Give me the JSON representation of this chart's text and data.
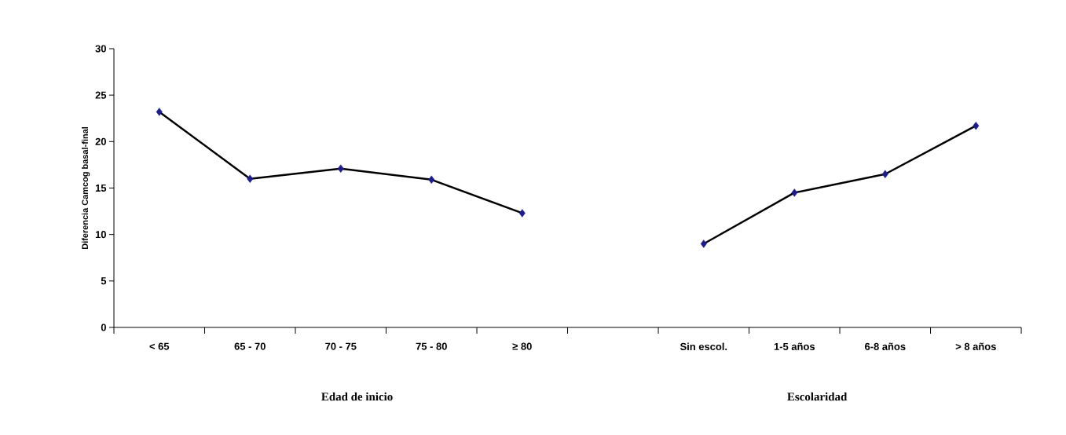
{
  "chart_data": {
    "type": "line",
    "ylabel": "Diferencia Camcog basal-final",
    "categories": [
      "< 65",
      "65 - 70",
      "70 - 75",
      "75 - 80",
      "≥ 80",
      null,
      "Sin escol.",
      "1-5 años",
      "6-8 años",
      "> 8 años"
    ],
    "series": [
      {
        "color": "#000000",
        "colors": [
          "#1c1c8c",
          "#1c1c8c",
          "#1c1c8c",
          "#1c1c8c",
          "#1c1c8c",
          "#1c1c8c",
          "#1c1c8c",
          "#1c1c8c",
          "#1c1c8c",
          "#1c1c8c"
        ],
        "values": [
          23.2,
          16.0,
          17.1,
          15.9,
          12.3,
          null,
          9.0,
          14.5,
          16.5,
          21.7
        ]
      }
    ],
    "annotations": [
      "Edad  de inicio",
      "Escolaridad"
    ],
    "ylim": [
      0,
      30
    ],
    "yticks": [
      0,
      5,
      10,
      15,
      20,
      25,
      30
    ],
    "grid": false,
    "marker": "diamond",
    "line_style": "solid"
  }
}
